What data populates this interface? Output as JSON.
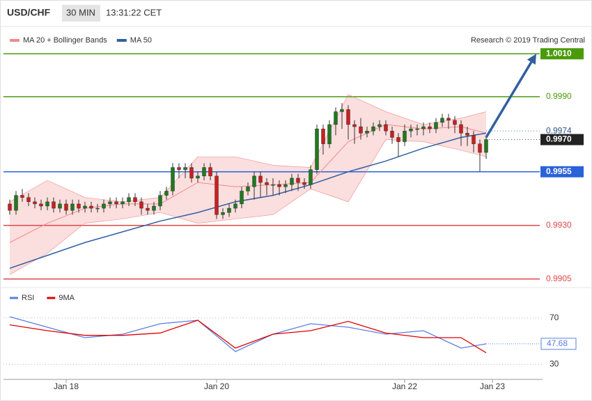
{
  "header": {
    "symbol": "USD/CHF",
    "interval": "30 MIN",
    "time": "13:31:22 CET"
  },
  "chart_data": [
    {
      "type": "candlestick",
      "credit": "Research © 2019 Trading Central",
      "xlim": [
        -1,
        85
      ],
      "ylim": [
        0.9902,
        1.0013
      ],
      "up_color": "#1f7a1f",
      "down_color": "#c82020",
      "candles": [
        [
          0.994,
          0.9942,
          0.9935,
          0.9937
        ],
        [
          0.9937,
          0.9946,
          0.9935,
          0.9944
        ],
        [
          0.9944,
          0.9947,
          0.9941,
          0.9943
        ],
        [
          0.9943,
          0.9945,
          0.9939,
          0.9941
        ],
        [
          0.9941,
          0.9943,
          0.9938,
          0.994
        ],
        [
          0.994,
          0.9942,
          0.9937,
          0.9939
        ],
        [
          0.9939,
          0.9943,
          0.9937,
          0.9941
        ],
        [
          0.9941,
          0.9943,
          0.9936,
          0.9938
        ],
        [
          0.9938,
          0.9942,
          0.9936,
          0.994
        ],
        [
          0.994,
          0.9942,
          0.9935,
          0.9937
        ],
        [
          0.9937,
          0.9942,
          0.9935,
          0.994
        ],
        [
          0.994,
          0.9942,
          0.9936,
          0.9938
        ],
        [
          0.9938,
          0.9941,
          0.9936,
          0.9939
        ],
        [
          0.9939,
          0.9941,
          0.9936,
          0.9938
        ],
        [
          0.9938,
          0.994,
          0.9936,
          0.9938
        ],
        [
          0.9938,
          0.9942,
          0.9936,
          0.994
        ],
        [
          0.994,
          0.9943,
          0.9938,
          0.9941
        ],
        [
          0.9941,
          0.9943,
          0.9938,
          0.994
        ],
        [
          0.994,
          0.9943,
          0.9938,
          0.9941
        ],
        [
          0.9941,
          0.9945,
          0.9939,
          0.9943
        ],
        [
          0.9943,
          0.9945,
          0.9939,
          0.9941
        ],
        [
          0.9941,
          0.9943,
          0.9935,
          0.9938
        ],
        [
          0.9938,
          0.994,
          0.9935,
          0.9937
        ],
        [
          0.9937,
          0.9941,
          0.9935,
          0.9939
        ],
        [
          0.9939,
          0.9946,
          0.9937,
          0.9944
        ],
        [
          0.9944,
          0.9948,
          0.9942,
          0.9946
        ],
        [
          0.9946,
          0.9959,
          0.9944,
          0.9957
        ],
        [
          0.9957,
          0.9959,
          0.9952,
          0.9956
        ],
        [
          0.9956,
          0.9959,
          0.9952,
          0.9957
        ],
        [
          0.9957,
          0.9959,
          0.995,
          0.9952
        ],
        [
          0.9952,
          0.9955,
          0.995,
          0.9953
        ],
        [
          0.9953,
          0.9959,
          0.9951,
          0.9957
        ],
        [
          0.9957,
          0.9959,
          0.9951,
          0.9953
        ],
        [
          0.9953,
          0.9955,
          0.9933,
          0.9935
        ],
        [
          0.9935,
          0.9938,
          0.9933,
          0.9936
        ],
        [
          0.9936,
          0.994,
          0.9934,
          0.9938
        ],
        [
          0.9938,
          0.9942,
          0.9936,
          0.994
        ],
        [
          0.994,
          0.9948,
          0.9938,
          0.9946
        ],
        [
          0.9946,
          0.995,
          0.9944,
          0.9948
        ],
        [
          0.9948,
          0.9955,
          0.9942,
          0.9953
        ],
        [
          0.9953,
          0.9955,
          0.9943,
          0.995
        ],
        [
          0.995,
          0.9952,
          0.9944,
          0.9949
        ],
        [
          0.9949,
          0.9952,
          0.9944,
          0.9949
        ],
        [
          0.9949,
          0.9951,
          0.9944,
          0.9948
        ],
        [
          0.9948,
          0.9951,
          0.9945,
          0.9949
        ],
        [
          0.9949,
          0.9954,
          0.9946,
          0.9952
        ],
        [
          0.9952,
          0.9954,
          0.9946,
          0.995
        ],
        [
          0.995,
          0.9952,
          0.9947,
          0.9949
        ],
        [
          0.9949,
          0.9958,
          0.9947,
          0.9956
        ],
        [
          0.9956,
          0.9977,
          0.9954,
          0.9975
        ],
        [
          0.9975,
          0.9977,
          0.9963,
          0.9968
        ],
        [
          0.9968,
          0.9979,
          0.9966,
          0.9977
        ],
        [
          0.9977,
          0.9985,
          0.9972,
          0.9983
        ],
        [
          0.9983,
          0.9987,
          0.9975,
          0.9984
        ],
        [
          0.9984,
          0.9986,
          0.997,
          0.9977
        ],
        [
          0.9977,
          0.9979,
          0.9968,
          0.9976
        ],
        [
          0.9976,
          0.998,
          0.997,
          0.9973
        ],
        [
          0.9973,
          0.9976,
          0.9971,
          0.9974
        ],
        [
          0.9974,
          0.9978,
          0.9972,
          0.9976
        ],
        [
          0.9976,
          0.9979,
          0.9974,
          0.9977
        ],
        [
          0.9977,
          0.9979,
          0.9972,
          0.9974
        ],
        [
          0.9974,
          0.9976,
          0.9968,
          0.9971
        ],
        [
          0.9971,
          0.9973,
          0.9962,
          0.9969
        ],
        [
          0.9969,
          0.9977,
          0.9967,
          0.9974
        ],
        [
          0.9974,
          0.9977,
          0.9971,
          0.9975
        ],
        [
          0.9975,
          0.9977,
          0.9972,
          0.9975
        ],
        [
          0.9975,
          0.9978,
          0.9972,
          0.9976
        ],
        [
          0.9976,
          0.9978,
          0.9973,
          0.9975
        ],
        [
          0.9975,
          0.998,
          0.9973,
          0.9978
        ],
        [
          0.9978,
          0.9982,
          0.9976,
          0.998
        ],
        [
          0.998,
          0.9982,
          0.9975,
          0.9979
        ],
        [
          0.9979,
          0.9981,
          0.9973,
          0.9977
        ],
        [
          0.9977,
          0.9979,
          0.9967,
          0.9973
        ],
        [
          0.9973,
          0.9976,
          0.9967,
          0.9972
        ],
        [
          0.9972,
          0.9974,
          0.9964,
          0.9968
        ],
        [
          0.9968,
          0.997,
          0.9955,
          0.9964
        ],
        [
          0.9964,
          0.9972,
          0.9961,
          0.997
        ]
      ],
      "line_x": [
        0,
        6,
        12,
        18,
        24,
        30,
        36,
        42,
        48,
        54,
        60,
        66,
        72,
        76
      ],
      "overlays": [
        {
          "name": "MA 20 + Bollinger Bands",
          "color": "#f08a8a",
          "values": [
            0.9922,
            0.9931,
            0.9938,
            0.994,
            0.994,
            0.995,
            0.9948,
            0.9949,
            0.995,
            0.9969,
            0.9977,
            0.9975,
            0.9976,
            0.9973
          ],
          "upper": [
            0.9941,
            0.9951,
            0.9943,
            0.9941,
            0.9943,
            0.9962,
            0.9962,
            0.9958,
            0.9957,
            0.9991,
            0.9983,
            0.9977,
            0.998,
            0.9983
          ],
          "lower": [
            0.9907,
            0.9917,
            0.9931,
            0.9933,
            0.9936,
            0.9931,
            0.9933,
            0.9935,
            0.9947,
            0.9941,
            0.997,
            0.9969,
            0.9965,
            0.9962
          ]
        },
        {
          "name": "MA 50",
          "color": "#2f5f9f",
          "values": [
            0.991,
            0.9916,
            0.9922,
            0.9927,
            0.9932,
            0.9936,
            0.9941,
            0.9944,
            0.9949,
            0.9955,
            0.996,
            0.9966,
            0.9971,
            0.9973
          ]
        }
      ],
      "levels": [
        {
          "value": 1.001,
          "label": "1.0010",
          "color": "#4a9a0a",
          "box": true,
          "line": "solid"
        },
        {
          "value": 0.999,
          "label": "0.9990",
          "color": "#4a9a0a",
          "box": false,
          "line": "solid"
        },
        {
          "value": 0.9974,
          "color": "#2f4f8f",
          "box": false,
          "line": "dotted"
        },
        {
          "value": 0.997,
          "label": "0.9970",
          "color": "#222222",
          "box": true,
          "line": "dotted"
        },
        {
          "value": 0.9955,
          "color": "#2962d9",
          "box": true,
          "line": "solid"
        },
        {
          "value": 0.993,
          "label": "0.9930",
          "color": "#e04848",
          "box": false,
          "line": "solid"
        },
        {
          "value": 0.9905,
          "color": "#e04848",
          "box": false,
          "line": "solid"
        }
      ],
      "forecast": {
        "from_x": 76,
        "from_value": 0.9971,
        "to_x": 84,
        "to_value": 1.001,
        "color": "#2f5f9f"
      }
    },
    {
      "type": "line",
      "xlim": [
        -1,
        85
      ],
      "ylim": [
        17,
        92
      ],
      "yticks": [
        30,
        70
      ],
      "x": [
        0,
        6,
        12,
        18,
        24,
        30,
        36,
        42,
        48,
        54,
        60,
        66,
        72,
        76
      ],
      "series": [
        {
          "name": "RSI",
          "color": "#5b7fe0",
          "values": [
            71,
            62,
            53,
            56,
            65,
            68,
            41,
            56,
            65,
            62,
            56,
            59,
            44,
            47.68
          ]
        },
        {
          "name": "9MA",
          "color": "#e00000",
          "values": [
            64,
            59,
            55,
            55,
            57,
            68,
            44,
            56,
            59,
            67,
            57,
            53,
            53,
            40
          ]
        }
      ],
      "xticks": [
        {
          "value": 9,
          "label": "Jan 18"
        },
        {
          "value": 33,
          "label": "Jan 20"
        },
        {
          "value": 63,
          "label": "Jan 22"
        },
        {
          "value": 77,
          "label": "Jan 23"
        }
      ]
    }
  ]
}
